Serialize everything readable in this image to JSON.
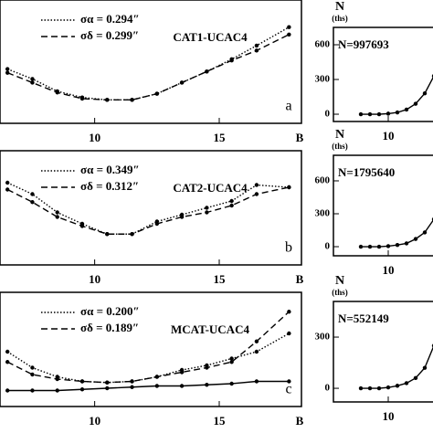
{
  "chart_data": [
    {
      "type": "line",
      "label": "CAT1-UCAC4",
      "panel_letter": "a",
      "x_label": "B",
      "x": [
        6.5,
        7.5,
        8.5,
        9.5,
        10.5,
        11.5,
        12.5,
        13.5,
        14.5,
        15.5,
        16.5,
        17.8
      ],
      "xlim": [
        6.2,
        18.3
      ],
      "xticks": [
        10,
        15
      ],
      "ylim": [
        0,
        100
      ],
      "series": [
        {
          "name": "σα = 0.294″",
          "color": "#000000",
          "linestyle": "dotted",
          "values": [
            44,
            36,
            26,
            21,
            19,
            19,
            24,
            33,
            42,
            52,
            63,
            78
          ]
        },
        {
          "name": "σδ = 0.299″",
          "color": "#000000",
          "linestyle": "dashed",
          "values": [
            41,
            33,
            25,
            20,
            19,
            19,
            24,
            33,
            42,
            51,
            59,
            72
          ]
        }
      ]
    },
    {
      "type": "line",
      "y_label": "N",
      "y_unit": "(ths)",
      "annotation": "N=997693",
      "x": [
        7,
        8,
        9,
        10,
        11,
        12,
        13,
        14,
        15
      ],
      "xlim": [
        4,
        16
      ],
      "xticks": [
        10
      ],
      "ylim": [
        -63,
        750
      ],
      "yticks": [
        0,
        300,
        600
      ],
      "series": [
        {
          "color": "#000000",
          "linestyle": "solid",
          "values": [
            0,
            0,
            0,
            5,
            15,
            40,
            90,
            180,
            330
          ]
        }
      ]
    },
    {
      "type": "line",
      "label": "CAT2-UCAC4",
      "panel_letter": "b",
      "x_label": "B",
      "x": [
        6.5,
        7.5,
        8.5,
        9.5,
        10.5,
        11.5,
        12.5,
        13.5,
        14.5,
        15.5,
        16.5,
        17.8
      ],
      "xlim": [
        6.2,
        18.3
      ],
      "xticks": [
        10,
        15
      ],
      "ylim": [
        0,
        100
      ],
      "series": [
        {
          "name": "σα = 0.349″",
          "color": "#000000",
          "linestyle": "dotted",
          "values": [
            72,
            62,
            46,
            36,
            27,
            27,
            38,
            44,
            50,
            56,
            70,
            68
          ]
        },
        {
          "name": "σδ = 0.312″",
          "color": "#000000",
          "linestyle": "dashed",
          "values": [
            66,
            55,
            42,
            34,
            27,
            27,
            36,
            42,
            46,
            52,
            62,
            68
          ]
        }
      ]
    },
    {
      "type": "line",
      "y_label": "N",
      "y_unit": "(ths)",
      "annotation": "N=1795640",
      "x": [
        7,
        8,
        9,
        10,
        11,
        12,
        13,
        14,
        15
      ],
      "xlim": [
        4,
        16
      ],
      "xticks": [
        10
      ],
      "ylim": [
        -83,
        833
      ],
      "yticks": [
        0,
        300,
        600
      ],
      "series": [
        {
          "color": "#000000",
          "linestyle": "solid",
          "values": [
            0,
            0,
            0,
            5,
            15,
            30,
            70,
            130,
            250
          ]
        }
      ]
    },
    {
      "type": "line",
      "label": "MCAT-UCAC4",
      "panel_letter": "c",
      "x_label": "B",
      "x": [
        6.5,
        7.5,
        8.5,
        9.5,
        10.5,
        11.5,
        12.5,
        13.5,
        14.5,
        15.5,
        16.5,
        17.8
      ],
      "xlim": [
        6.2,
        18.3
      ],
      "xticks": [
        10,
        15
      ],
      "ylim": [
        0,
        100
      ],
      "series": [
        {
          "name": "σα = 0.200″",
          "color": "#000000",
          "linestyle": "dotted",
          "values": [
            48,
            34,
            26,
            22,
            21,
            22,
            26,
            32,
            36,
            42,
            48,
            64
          ]
        },
        {
          "name": "σδ = 0.189″",
          "color": "#000000",
          "linestyle": "dashed",
          "values": [
            39,
            28,
            24,
            22,
            21,
            22,
            26,
            30,
            34,
            39,
            57,
            83
          ]
        },
        {
          "color": "#000000",
          "linestyle": "solid",
          "values": [
            14,
            14,
            14,
            15,
            16,
            17,
            18,
            18,
            19,
            20,
            22,
            22
          ]
        }
      ]
    },
    {
      "type": "line",
      "y_label": "N",
      "y_unit": "(ths)",
      "annotation": "N=552149",
      "x": [
        7,
        8,
        9,
        10,
        11,
        12,
        13,
        14,
        15
      ],
      "xlim": [
        4,
        16
      ],
      "xticks": [
        10
      ],
      "ylim": [
        -80,
        509
      ],
      "yticks": [
        0,
        300
      ],
      "series": [
        {
          "color": "#000000",
          "linestyle": "solid",
          "values": [
            0,
            0,
            0,
            5,
            15,
            30,
            60,
            120,
            250
          ]
        }
      ]
    }
  ]
}
